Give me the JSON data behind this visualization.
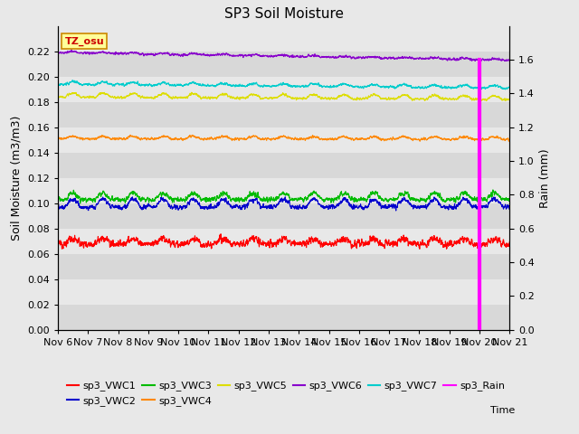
{
  "title": "SP3 Soil Moisture",
  "ylabel_left": "Soil Moisture (m3/m3)",
  "ylabel_right": "Rain (mm)",
  "xlabel": "Time",
  "tz_label": "TZ_osu",
  "ylim_left": [
    0.0,
    0.24
  ],
  "ylim_right": [
    0.0,
    1.8
  ],
  "xtick_labels": [
    "Nov 6",
    "Nov 7",
    "Nov 8",
    "Nov 9",
    "Nov 10",
    "Nov 11",
    "Nov 12",
    "Nov 13",
    "Nov 14",
    "Nov 15",
    "Nov 16",
    "Nov 17",
    "Nov 18",
    "Nov 19",
    "Nov 20",
    "Nov 21"
  ],
  "series": {
    "sp3_VWC1": {
      "color": "#ff0000",
      "base": 0.068,
      "amp": 0.004,
      "noise": 0.003,
      "trend": -0.0002
    },
    "sp3_VWC2": {
      "color": "#0000cc",
      "base": 0.097,
      "amp": 0.006,
      "noise": 0.002,
      "trend": 0.0002
    },
    "sp3_VWC3": {
      "color": "#00bb00",
      "base": 0.103,
      "amp": 0.005,
      "noise": 0.002,
      "trend": 0.0001
    },
    "sp3_VWC4": {
      "color": "#ff8800",
      "base": 0.151,
      "amp": 0.002,
      "noise": 0.001,
      "trend": -0.0005
    },
    "sp3_VWC5": {
      "color": "#dddd00",
      "base": 0.184,
      "amp": 0.003,
      "noise": 0.001,
      "trend": -0.002
    },
    "sp3_VWC6": {
      "color": "#8800cc",
      "base": 0.219,
      "amp": 0.001,
      "noise": 0.001,
      "trend": -0.006
    },
    "sp3_VWC7": {
      "color": "#00cccc",
      "base": 0.194,
      "amp": 0.002,
      "noise": 0.001,
      "trend": -0.003
    }
  },
  "rain_color": "#ff00ff",
  "rain_spike_day": 14.0,
  "rain_spike_value": 1.6,
  "background_color": "#e8e8e8",
  "band_colors": [
    "#d8d8d8",
    "#e8e8e8"
  ],
  "title_fontsize": 11,
  "legend_fontsize": 8,
  "tick_fontsize": 8,
  "label_fontsize": 9,
  "yticks_left": [
    0.0,
    0.02,
    0.04,
    0.06,
    0.08,
    0.1,
    0.12,
    0.14,
    0.16,
    0.18,
    0.2,
    0.22
  ],
  "yticks_right": [
    0.0,
    0.2,
    0.4,
    0.6,
    0.8,
    1.0,
    1.2,
    1.4,
    1.6
  ]
}
